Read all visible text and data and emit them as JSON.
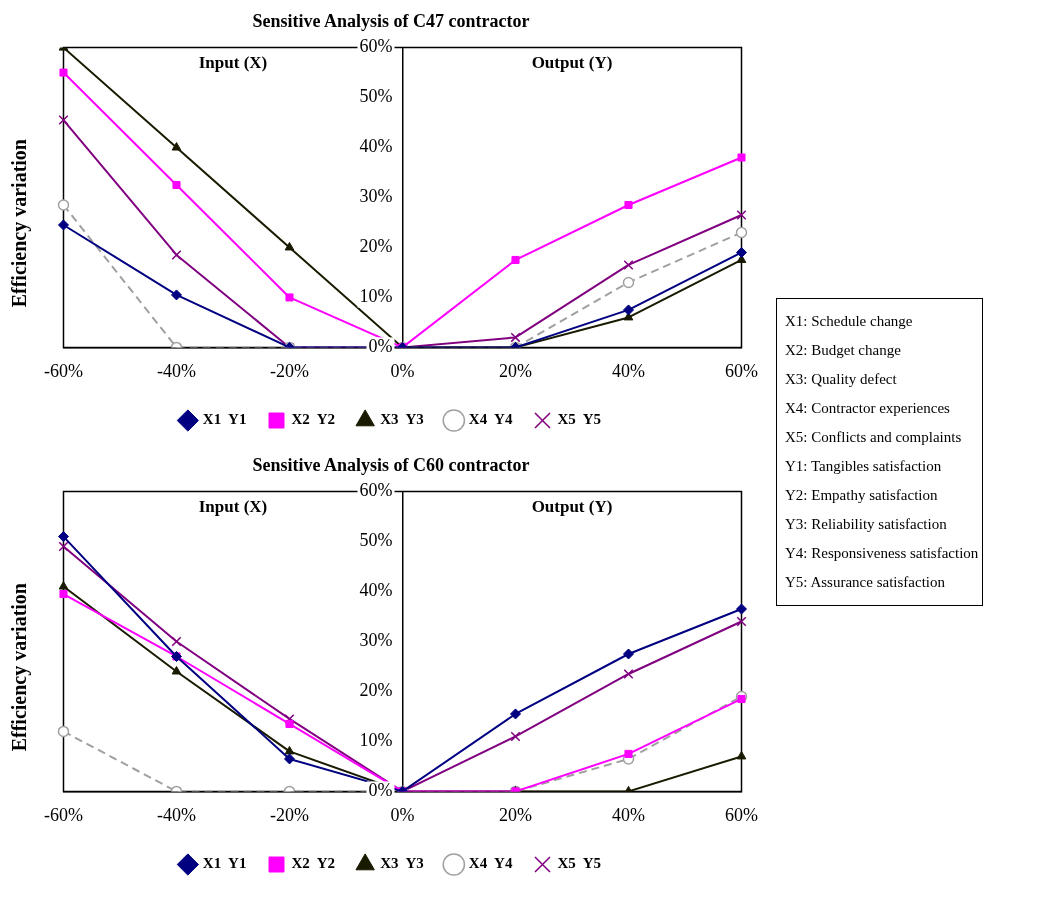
{
  "chart_data": [
    {
      "type": "line",
      "title": "Sensitive Analysis of C47 contractor",
      "ylabel": "Efficiency variation",
      "annotations": [
        "Input (X)",
        "Output (Y)"
      ],
      "categories": [
        "-60%",
        "-40%",
        "-20%",
        "0%",
        "20%",
        "40%",
        "60%"
      ],
      "ylim": [
        0,
        60
      ],
      "yticks": [
        {
          "value": 0,
          "label": "0%"
        },
        {
          "value": 10,
          "label": "10%"
        },
        {
          "value": 20,
          "label": "20%"
        },
        {
          "value": 30,
          "label": "30%"
        },
        {
          "value": 40,
          "label": "40%"
        },
        {
          "value": 50,
          "label": "50%"
        },
        {
          "value": 60,
          "label": "60%"
        }
      ],
      "grid": false,
      "legend": "bottom",
      "series": [
        {
          "name": "X1  Y1",
          "color": "#000080",
          "marker": "diamond",
          "line_style": "solid",
          "values": [
            24.5,
            10.5,
            0,
            0,
            0,
            7.5,
            19
          ]
        },
        {
          "name": "X2  Y2",
          "color": "#ff00ff",
          "marker": "square",
          "line_style": "solid",
          "values": [
            55,
            32.5,
            10,
            0,
            17.5,
            28.5,
            38
          ]
        },
        {
          "name": "X3  Y3",
          "color": "#1a1a00",
          "marker": "triangle",
          "line_style": "solid",
          "values": [
            60,
            40,
            20,
            0,
            0,
            6,
            17.5
          ]
        },
        {
          "name": "X4  Y4",
          "color": "#a0a0a0",
          "marker": "circle",
          "line_style": "dashed",
          "values": [
            28.5,
            0,
            0,
            0,
            0,
            13,
            23
          ]
        },
        {
          "name": "X5  Y5",
          "color": "#800080",
          "marker": "cross",
          "line_style": "solid",
          "values": [
            45.5,
            18.5,
            0,
            0,
            2,
            16.5,
            26.5
          ]
        }
      ]
    },
    {
      "type": "line",
      "title": "Sensitive Analysis of C60 contractor",
      "ylabel": "Efficiency variation",
      "annotations": [
        "Input (X)",
        "Output (Y)"
      ],
      "categories": [
        "-60%",
        "-40%",
        "-20%",
        "0%",
        "20%",
        "40%",
        "60%"
      ],
      "ylim": [
        0,
        60
      ],
      "yticks": [
        {
          "value": 0,
          "label": "0%"
        },
        {
          "value": 10,
          "label": "10%"
        },
        {
          "value": 20,
          "label": "20%"
        },
        {
          "value": 30,
          "label": "30%"
        },
        {
          "value": 40,
          "label": "40%"
        },
        {
          "value": 50,
          "label": "50%"
        },
        {
          "value": 60,
          "label": "60%"
        }
      ],
      "grid": false,
      "legend": "bottom",
      "series": [
        {
          "name": "X1  Y1",
          "color": "#000080",
          "marker": "diamond",
          "line_style": "solid",
          "values": [
            51,
            27,
            6.5,
            0,
            15.5,
            27.5,
            36.5
          ]
        },
        {
          "name": "X2  Y2",
          "color": "#ff00ff",
          "marker": "square",
          "line_style": "solid",
          "values": [
            39.5,
            27,
            13.5,
            0,
            0,
            7.5,
            18.5
          ]
        },
        {
          "name": "X3  Y3",
          "color": "#1a1a00",
          "marker": "triangle",
          "line_style": "solid",
          "values": [
            41,
            24,
            8,
            0,
            0,
            0,
            7
          ]
        },
        {
          "name": "X4  Y4",
          "color": "#a0a0a0",
          "marker": "circle",
          "line_style": "dashed",
          "values": [
            12,
            0,
            0,
            0,
            0,
            6.5,
            19
          ]
        },
        {
          "name": "X5  Y5",
          "color": "#800080",
          "marker": "cross",
          "line_style": "solid",
          "values": [
            49,
            30,
            14.5,
            0,
            11,
            23.5,
            34
          ]
        }
      ]
    },
    {
      "type": "other",
      "annotations": [
        "X1: Schedule change",
        "X2: Budget change",
        "X3: Quality defect",
        "X4: Contractor experiences",
        "X5: Conflicts and complaints",
        "Y1: Tangibles satisfaction",
        "Y2: Empathy satisfaction",
        "Y3: Reliability satisfaction",
        "Y4: Responsiveness satisfaction",
        "Y5: Assurance satisfaction"
      ]
    }
  ]
}
